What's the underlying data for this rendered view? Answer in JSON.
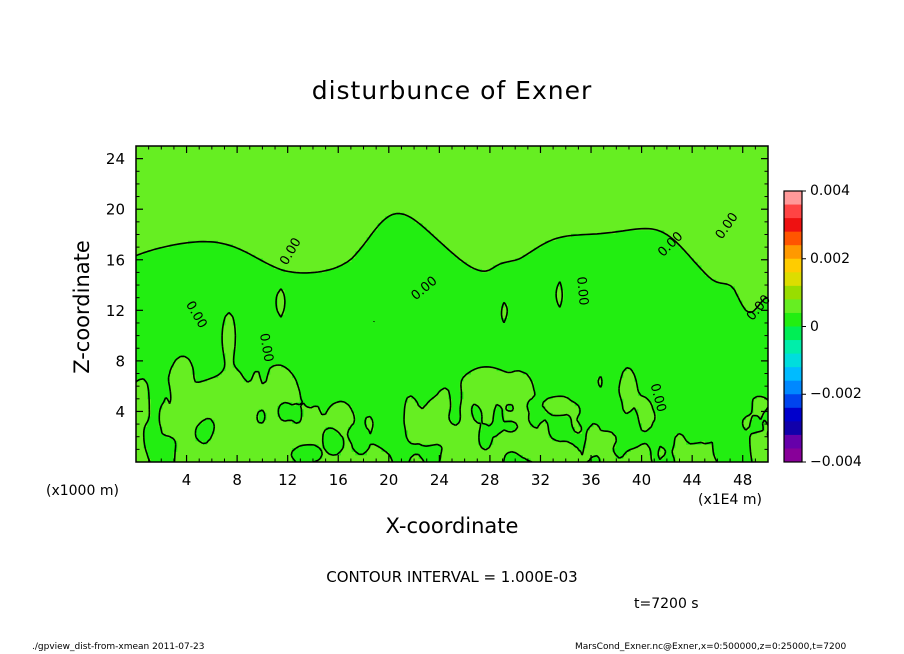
{
  "header": {
    "title": "disturbunce of Exner"
  },
  "axes": {
    "xlabel": "X-coordinate",
    "ylabel": "Z-coordinate",
    "x_unit": "(x1000 m)",
    "x_unit_right": "(x1E4 m)"
  },
  "annotations": {
    "contour_interval": "CONTOUR INTERVAL = 1.000E-03",
    "time": "t=7200 s",
    "footer_left": "./gpview_dist-from-xmean   2011-07-23",
    "footer_right": "MarsCond_Exner.nc@Exner,x=0:500000,z=0:25000,t=7200"
  },
  "chart_data": {
    "type": "heatmap",
    "title": "disturbunce of Exner",
    "xlabel": "X-coordinate",
    "ylabel": "Z-coordinate",
    "xlim": [
      0,
      50
    ],
    "ylim": [
      0,
      25
    ],
    "x_ticks": [
      4,
      8,
      12,
      16,
      20,
      24,
      28,
      32,
      36,
      40,
      44,
      48
    ],
    "y_ticks": [
      4,
      8,
      12,
      16,
      20,
      24
    ],
    "contour_interval": 0.001,
    "contour_labels": [
      "0.00"
    ],
    "field_range": [
      -0.004,
      0.004
    ],
    "field_bands": [
      {
        "label": "0",
        "from": 0,
        "to": 0.0005,
        "color": "#66ee22"
      },
      {
        "label": "0",
        "from": -0.0005,
        "to": 0,
        "color": "#22ee11"
      }
    ],
    "colorbar": {
      "ticks": [
        0.004,
        0.002,
        0,
        -0.002,
        -0.004
      ],
      "tick_labels": [
        "0.004",
        "0.002",
        "0",
        "−0.002",
        "−0.004"
      ],
      "colors": [
        "#ff9999",
        "#ff4444",
        "#ee1111",
        "#ff5500",
        "#ff9900",
        "#ffcc00",
        "#dddd00",
        "#99dd00",
        "#66ee22",
        "#22ee11",
        "#00ee55",
        "#00eeaa",
        "#00dddd",
        "#00bbff",
        "#0088ff",
        "#0044ee",
        "#0000cc",
        "#1100aa",
        "#6600aa",
        "#880099"
      ]
    }
  }
}
